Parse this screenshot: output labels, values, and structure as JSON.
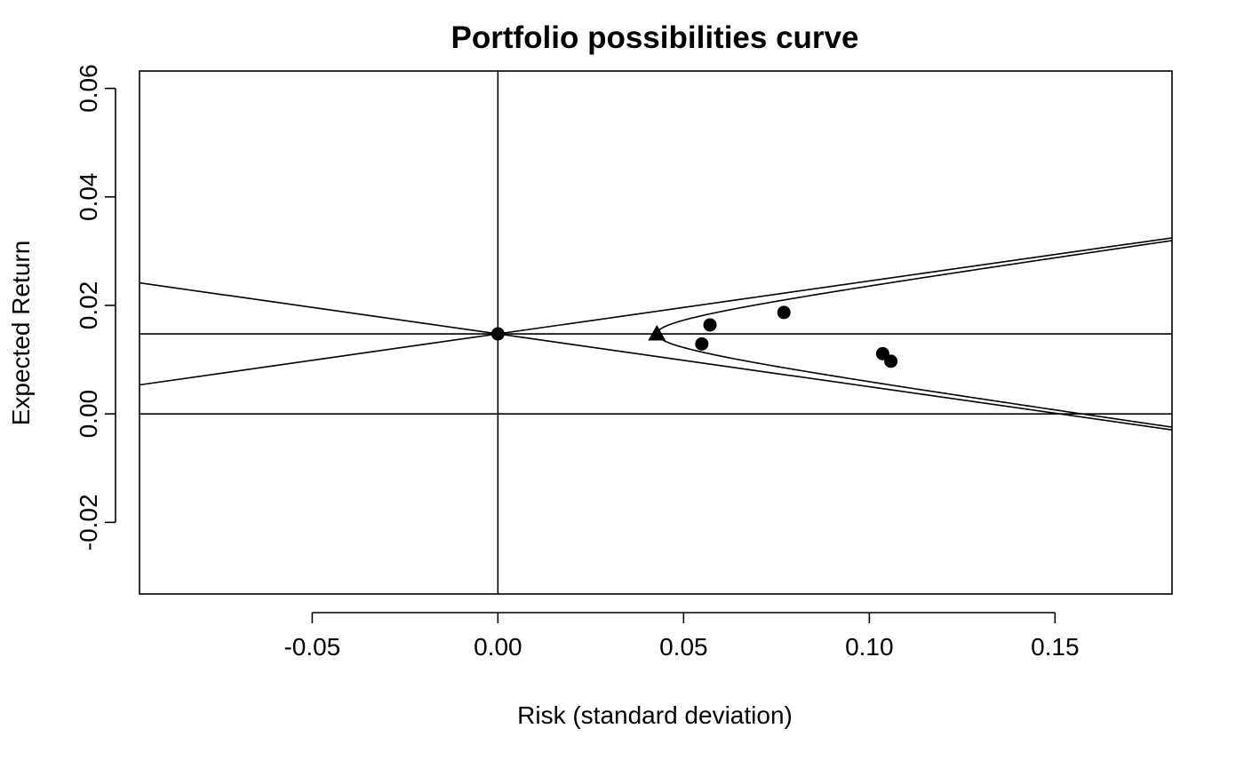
{
  "chart_data": {
    "type": "line",
    "title": "Portfolio possibilities curve",
    "xlabel": "Risk (standard deviation)",
    "ylabel": "Expected Return",
    "xlim": [
      -0.0965,
      0.1815
    ],
    "ylim": [
      -0.0332,
      0.0632
    ],
    "x_ticks": [
      -0.05,
      0.0,
      0.05,
      0.1,
      0.15
    ],
    "x_tick_labels": [
      "-0.05",
      "0.00",
      "0.05",
      "0.10",
      "0.15"
    ],
    "y_ticks": [
      -0.02,
      0.0,
      0.02,
      0.04,
      0.06
    ],
    "y_tick_labels": [
      "-0.02",
      "0.00",
      "0.02",
      "0.04",
      "0.06"
    ],
    "grid": false,
    "reference_lines": {
      "horizontal": [
        0.0,
        0.01475
      ],
      "vertical": [
        0.0
      ]
    },
    "asymptote_lines": [
      {
        "slope": 0.0975,
        "intercept": 0.01475
      },
      {
        "slope": -0.0975,
        "intercept": 0.01475
      }
    ],
    "frontier_curve": {
      "vertex_risk": 0.0428,
      "vertex_return": 0.01475,
      "slope": 0.0975
    },
    "series": [
      {
        "marker": "circle",
        "points": [
          {
            "x": 0.0,
            "y": 0.01475
          },
          {
            "x": 0.0549,
            "y": 0.0129
          },
          {
            "x": 0.0571,
            "y": 0.0164
          },
          {
            "x": 0.077,
            "y": 0.0187
          },
          {
            "x": 0.1036,
            "y": 0.0111
          },
          {
            "x": 0.1058,
            "y": 0.0097
          }
        ]
      },
      {
        "marker": "triangle",
        "points": [
          {
            "x": 0.0428,
            "y": 0.01475
          }
        ]
      }
    ]
  }
}
